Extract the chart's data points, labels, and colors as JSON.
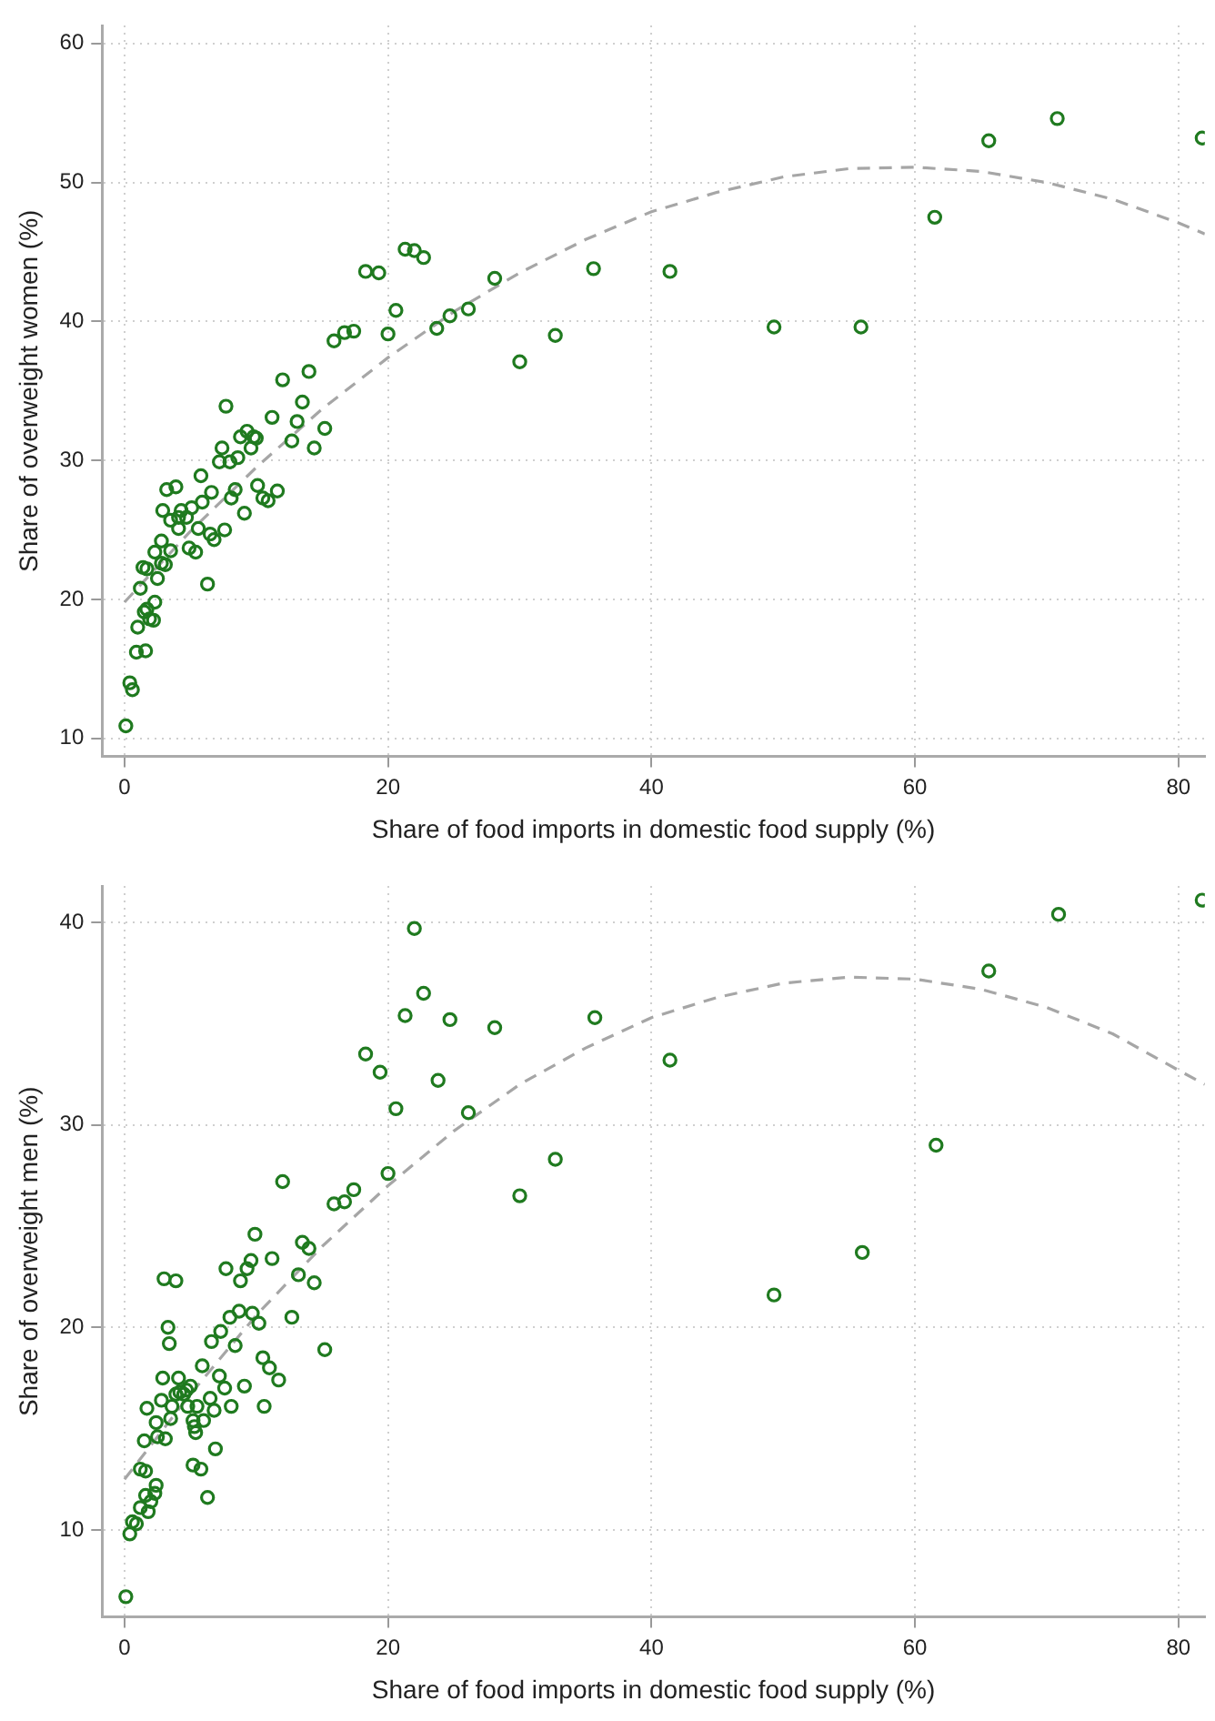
{
  "chart_data": [
    {
      "type": "scatter",
      "xlabel": "Share of food imports in domestic food supply (%)",
      "ylabel": "Share of overweight women (%)",
      "xlim": [
        -1.7,
        82
      ],
      "ylim": [
        8.7,
        61.3
      ],
      "xticks": [
        0,
        20,
        40,
        60,
        80
      ],
      "yticks": [
        10,
        20,
        30,
        40,
        50,
        60
      ],
      "grid": true,
      "marker": "circle",
      "series": [
        {
          "type": "scatter",
          "color": "#1f7a1f",
          "x": [
            0.1,
            0.4,
            0.6,
            0.9,
            1.6,
            1.0,
            1.2,
            1.5,
            1.7,
            1.9,
            2.2,
            2.3,
            1.4,
            1.7,
            2.5,
            2.8,
            2.3,
            2.8,
            3.1,
            3.5,
            2.9,
            3.2,
            3.9,
            3.5,
            4.1,
            4.3,
            4.7,
            5.1,
            4.1,
            4.9,
            5.4,
            5.6,
            5.9,
            5.8,
            6.6,
            6.3,
            6.5,
            6.8,
            7.6,
            7.2,
            7.4,
            8.0,
            7.7,
            8.1,
            8.4,
            8.6,
            8.8,
            9.1,
            9.3,
            9.8,
            9.6,
            10.0,
            10.1,
            10.5,
            10.9,
            11.6,
            11.2,
            12.0,
            12.7,
            13.1,
            13.5,
            14.0,
            14.4,
            15.2,
            15.9,
            16.7,
            17.4,
            18.3,
            19.3,
            20.0,
            20.6,
            21.3,
            22.0,
            22.7,
            23.7,
            24.7,
            26.1,
            28.1,
            30.0,
            32.7,
            35.6,
            41.4,
            49.3,
            55.9,
            61.5,
            65.6,
            70.8,
            81.8
          ],
          "values": [
            10.9,
            14.0,
            13.5,
            16.2,
            16.3,
            18.0,
            20.8,
            19.1,
            19.3,
            18.6,
            18.5,
            19.8,
            22.3,
            22.2,
            21.5,
            22.6,
            23.4,
            24.2,
            22.5,
            23.5,
            26.4,
            27.9,
            28.1,
            25.7,
            25.9,
            26.4,
            25.9,
            26.6,
            25.1,
            23.7,
            23.4,
            25.1,
            27.0,
            28.9,
            27.7,
            21.1,
            24.7,
            24.3,
            25.0,
            29.9,
            30.9,
            29.9,
            33.9,
            27.3,
            27.9,
            30.2,
            31.7,
            26.2,
            32.1,
            31.7,
            30.9,
            31.6,
            28.2,
            27.3,
            27.1,
            27.8,
            33.1,
            35.8,
            31.4,
            32.8,
            34.2,
            36.4,
            30.9,
            32.3,
            38.6,
            39.2,
            39.3,
            43.6,
            43.5,
            39.1,
            40.8,
            45.2,
            45.1,
            44.6,
            39.5,
            40.4,
            40.9,
            43.1,
            37.1,
            39.0,
            43.8,
            43.6,
            39.6,
            39.6,
            47.5,
            53.0,
            54.6,
            53.2
          ]
        },
        {
          "type": "line",
          "color": "#a6a6a6",
          "line_style": "dashed",
          "marker": "none",
          "x": [
            0,
            5,
            10,
            15,
            20,
            25,
            30,
            35,
            40,
            45,
            50,
            55,
            60,
            65,
            70,
            75,
            80,
            82
          ],
          "values": [
            19.8,
            24.9,
            29.5,
            33.7,
            37.4,
            40.7,
            43.5,
            45.9,
            47.9,
            49.3,
            50.4,
            51.0,
            51.1,
            50.8,
            50.0,
            48.8,
            47.1,
            46.3
          ]
        }
      ]
    },
    {
      "type": "scatter",
      "xlabel": "Share of food imports in domestic food supply (%)",
      "ylabel": "Share of overweight men (%)",
      "xlim": [
        -1.7,
        82
      ],
      "ylim": [
        5.7,
        41.8
      ],
      "xticks": [
        0,
        20,
        40,
        60,
        80
      ],
      "yticks": [
        10,
        20,
        30,
        40
      ],
      "grid": true,
      "marker": "circle",
      "series": [
        {
          "type": "scatter",
          "color": "#1f7a1f",
          "x": [
            0.1,
            0.4,
            0.6,
            0.9,
            1.2,
            1.8,
            1.6,
            2.0,
            2.3,
            2.4,
            1.2,
            1.6,
            1.5,
            1.7,
            2.4,
            2.5,
            2.8,
            2.9,
            3.1,
            3.0,
            3.9,
            3.3,
            3.4,
            3.5,
            3.6,
            4.1,
            3.9,
            4.2,
            4.5,
            4.7,
            5.0,
            4.8,
            5.2,
            5.3,
            5.4,
            5.5,
            5.9,
            6.0,
            5.2,
            5.8,
            6.3,
            6.5,
            6.8,
            6.9,
            6.6,
            7.2,
            7.6,
            7.3,
            7.7,
            8.1,
            8.0,
            8.4,
            8.7,
            8.8,
            9.1,
            9.3,
            9.6,
            9.7,
            9.9,
            10.2,
            10.5,
            10.6,
            11.0,
            11.2,
            11.7,
            12.0,
            12.7,
            13.2,
            13.5,
            14.0,
            14.4,
            15.2,
            15.9,
            16.7,
            17.4,
            18.3,
            19.4,
            20.0,
            20.6,
            21.3,
            22.0,
            22.7,
            23.8,
            24.7,
            26.1,
            28.1,
            30.0,
            32.7,
            35.7,
            41.4,
            49.3,
            56.0,
            61.6,
            65.6,
            70.9,
            81.8
          ],
          "values": [
            6.7,
            9.8,
            10.4,
            10.3,
            11.1,
            10.9,
            11.7,
            11.4,
            11.8,
            12.2,
            13.0,
            12.9,
            14.4,
            16.0,
            15.3,
            14.6,
            16.4,
            17.5,
            14.5,
            22.4,
            22.3,
            20.0,
            19.2,
            15.5,
            16.1,
            17.5,
            16.7,
            16.8,
            16.7,
            16.9,
            17.1,
            16.1,
            15.4,
            15.1,
            14.8,
            16.1,
            18.1,
            15.4,
            13.2,
            13.0,
            11.6,
            16.5,
            15.9,
            14.0,
            19.3,
            17.6,
            17.0,
            19.8,
            22.9,
            16.1,
            20.5,
            19.1,
            20.8,
            22.3,
            17.1,
            22.9,
            23.3,
            20.7,
            24.6,
            20.2,
            18.5,
            16.1,
            18.0,
            23.4,
            17.4,
            27.2,
            20.5,
            22.6,
            24.2,
            23.9,
            22.2,
            18.9,
            26.1,
            26.2,
            26.8,
            33.5,
            32.6,
            27.6,
            30.8,
            35.4,
            39.7,
            36.5,
            32.2,
            35.2,
            30.6,
            34.8,
            26.5,
            28.3,
            35.3,
            33.2,
            21.6,
            23.7,
            29.0,
            37.6,
            40.4,
            41.1
          ]
        },
        {
          "type": "line",
          "color": "#a6a6a6",
          "line_style": "dashed",
          "marker": "none",
          "x": [
            0,
            5,
            10,
            15,
            20,
            25,
            30,
            35,
            40,
            45,
            50,
            55,
            60,
            65,
            70,
            75,
            80,
            82
          ],
          "values": [
            12.5,
            16.7,
            20.6,
            24.0,
            27.0,
            29.7,
            32.0,
            33.8,
            35.3,
            36.3,
            37.0,
            37.3,
            37.2,
            36.7,
            35.8,
            34.5,
            32.7,
            32.0
          ]
        }
      ]
    }
  ]
}
